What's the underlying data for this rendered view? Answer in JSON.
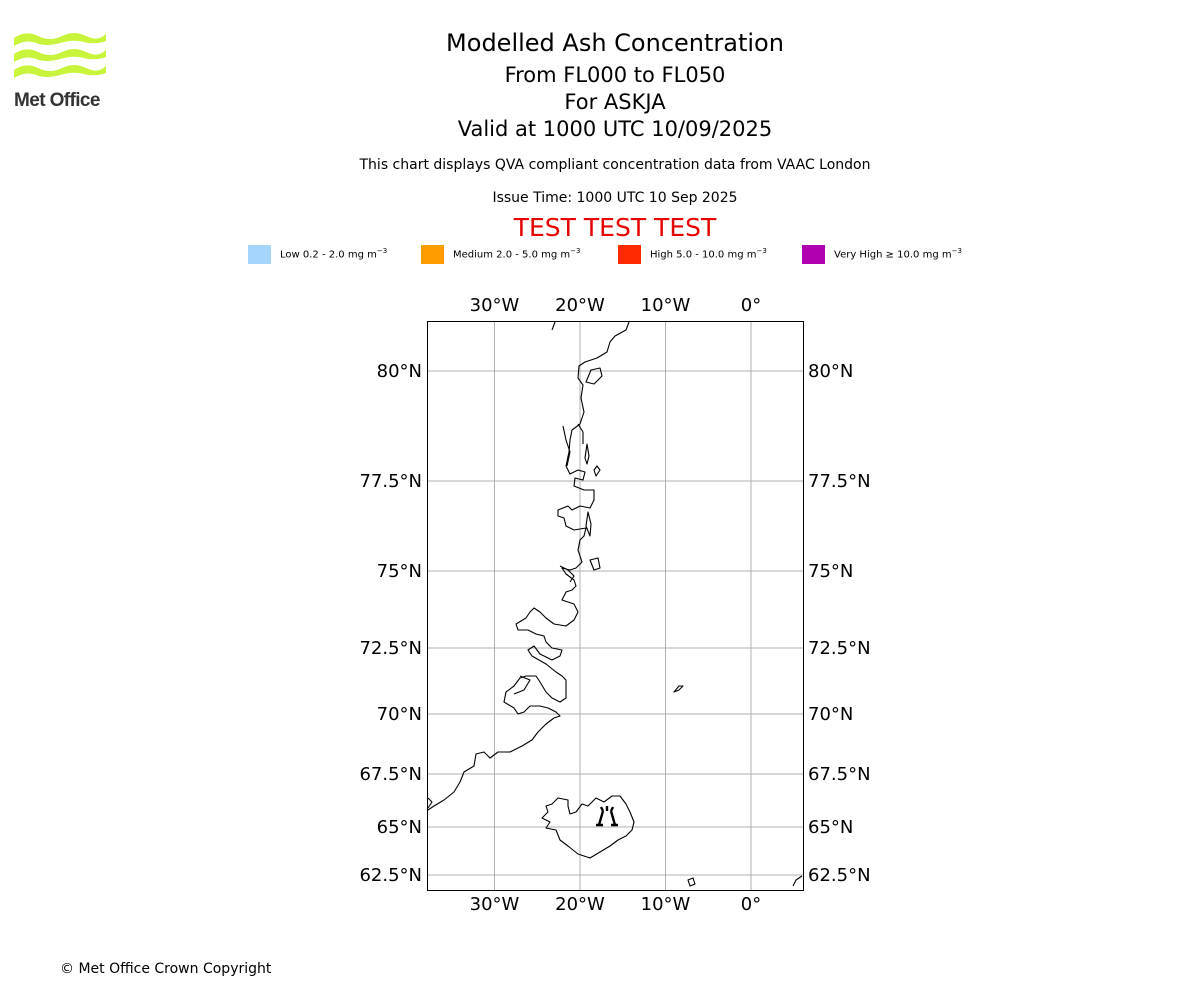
{
  "logo": {
    "text": "Met Office"
  },
  "header": {
    "title": "Modelled Ash Concentration",
    "level_range": "From FL000 to FL050",
    "volcano": "For ASKJA",
    "valid_time": "Valid at 1000 UTC 10/09/2025",
    "description": "This chart displays QVA compliant concentration data from VAAC London",
    "issue_time": "Issue Time: 1000 UTC 10 Sep 2025",
    "test_banner": "TEST TEST TEST"
  },
  "legend": {
    "items": [
      {
        "label": "Low 0.2 - 2.0 mg m",
        "unit_exp": "−3",
        "color": "#a6d5fb"
      },
      {
        "label": "Medium 2.0 - 5.0 mg m",
        "unit_exp": "−3",
        "color": "#ff9c00"
      },
      {
        "label": "High 5.0 - 10.0 mg m",
        "unit_exp": "−3",
        "color": "#ff2a00"
      },
      {
        "label": "Very High  ≥  10.0 mg m",
        "unit_exp": "−3",
        "color": "#b000b0"
      }
    ]
  },
  "map": {
    "longitude_ticks": [
      {
        "label": "30°W",
        "value": -30
      },
      {
        "label": "20°W",
        "value": -20
      },
      {
        "label": "10°W",
        "value": -10
      },
      {
        "label": "0°",
        "value": 0
      }
    ],
    "latitude_ticks": [
      {
        "label": "80°N",
        "value": 80
      },
      {
        "label": "77.5°N",
        "value": 77.5
      },
      {
        "label": "75°N",
        "value": 75
      },
      {
        "label": "72.5°N",
        "value": 72.5
      },
      {
        "label": "70°N",
        "value": 70
      },
      {
        "label": "67.5°N",
        "value": 67.5
      },
      {
        "label": "65°N",
        "value": 65
      },
      {
        "label": "62.5°N",
        "value": 62.5
      }
    ],
    "volcano_marker": {
      "name": "ASKJA",
      "icon": "volcano-icon"
    }
  },
  "footer": {
    "copyright": "© Met Office Crown Copyright"
  }
}
